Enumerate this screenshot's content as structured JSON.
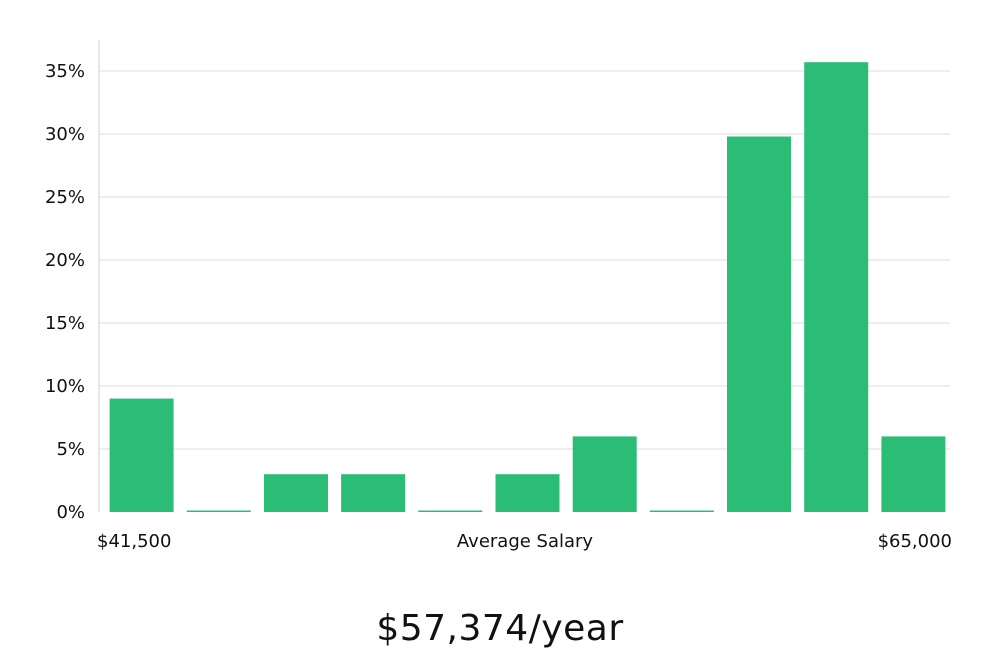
{
  "chart_data": {
    "type": "bar",
    "bar_count": 11,
    "values": [
      9,
      0,
      3,
      3,
      0,
      3,
      6,
      0,
      29.8,
      35.7,
      6
    ],
    "y_ticks": [
      "0%",
      "5%",
      "10%",
      "15%",
      "20%",
      "25%",
      "30%",
      "35%"
    ],
    "y_tick_values": [
      0,
      5,
      10,
      15,
      20,
      25,
      30,
      35
    ],
    "ylim": [
      0,
      37.5
    ],
    "x_min_label": "$41,500",
    "x_max_label": "$65,000",
    "xlabel": "Average Salary",
    "grid": true,
    "bar_color": "#2bbd76",
    "zero_bar_colors": [
      "#2bbd76",
      "#2bbd76",
      "#2bbd76",
      "#1a2a33"
    ]
  },
  "headline": "$57,374/year"
}
